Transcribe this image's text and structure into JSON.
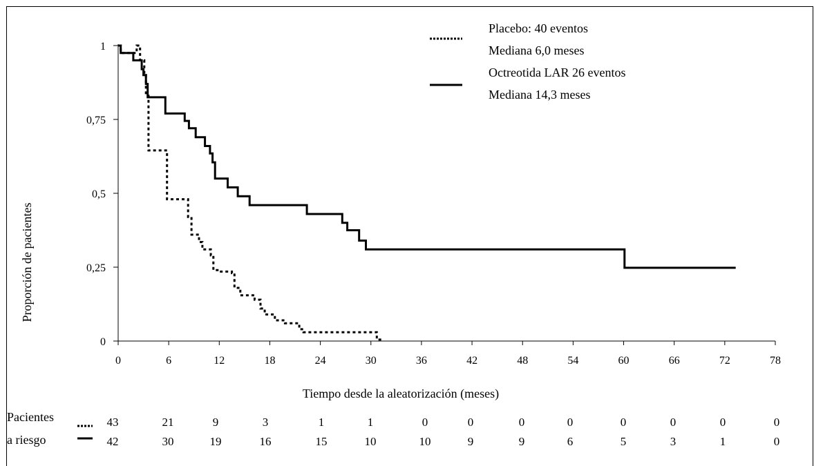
{
  "chart_data": {
    "type": "line",
    "chart_style": "kaplan-meier step curves",
    "title": "",
    "xlabel": "Tiempo desde la aleatorización (meses)",
    "ylabel": "Proporción de pacientes",
    "xlim": [
      0,
      78
    ],
    "ylim": [
      0,
      1
    ],
    "x_ticks": [
      0,
      6,
      12,
      18,
      24,
      30,
      36,
      42,
      48,
      54,
      60,
      66,
      72,
      78
    ],
    "y_ticks": [
      0,
      0.25,
      0.5,
      0.75,
      1
    ],
    "y_tick_labels": [
      "0",
      "0,25",
      "0,5",
      "0,75",
      "1"
    ],
    "grid": false,
    "legend_position": "top-right",
    "series": [
      {
        "name": "Placebo: 40 eventos",
        "name_line2": "Mediana 6,0 meses",
        "style": "dotted",
        "color": "#000000",
        "points": [
          [
            0,
            1
          ],
          [
            0.3,
            0.975
          ],
          [
            2,
            0.975
          ],
          [
            2.2,
            1
          ],
          [
            2.5,
            1
          ],
          [
            2.6,
            0.95
          ],
          [
            3,
            0.95
          ],
          [
            3.1,
            0.9
          ],
          [
            3.3,
            0.83
          ],
          [
            3.6,
            0.645
          ],
          [
            5,
            0.645
          ],
          [
            5.5,
            0.645
          ],
          [
            5.8,
            0.48
          ],
          [
            7.8,
            0.48
          ],
          [
            8.3,
            0.42
          ],
          [
            8.7,
            0.36
          ],
          [
            9.6,
            0.335
          ],
          [
            10,
            0.31
          ],
          [
            11,
            0.29
          ],
          [
            11.3,
            0.24
          ],
          [
            12,
            0.235
          ],
          [
            13.5,
            0.23
          ],
          [
            13.8,
            0.18
          ],
          [
            14.5,
            0.155
          ],
          [
            15.5,
            0.155
          ],
          [
            16.2,
            0.14
          ],
          [
            16.9,
            0.11
          ],
          [
            17.4,
            0.09
          ],
          [
            18.6,
            0.07
          ],
          [
            19.8,
            0.06
          ],
          [
            21.5,
            0.04
          ],
          [
            22,
            0.03
          ],
          [
            30.5,
            0.03
          ],
          [
            30.7,
            0.005
          ],
          [
            31.3,
            0
          ]
        ]
      },
      {
        "name": "Octreotida LAR 26 eventos",
        "name_line2": "Mediana 14,3 meses",
        "style": "solid",
        "color": "#000000",
        "points": [
          [
            0,
            1
          ],
          [
            0.3,
            0.975
          ],
          [
            1.5,
            0.975
          ],
          [
            1.8,
            0.95
          ],
          [
            2.6,
            0.95
          ],
          [
            2.8,
            0.92
          ],
          [
            3,
            0.9
          ],
          [
            3.3,
            0.87
          ],
          [
            3.5,
            0.825
          ],
          [
            5.5,
            0.825
          ],
          [
            5.6,
            0.77
          ],
          [
            7.6,
            0.77
          ],
          [
            7.9,
            0.745
          ],
          [
            8.4,
            0.72
          ],
          [
            9.2,
            0.69
          ],
          [
            10.3,
            0.66
          ],
          [
            10.9,
            0.635
          ],
          [
            11.2,
            0.605
          ],
          [
            11.5,
            0.55
          ],
          [
            13,
            0.52
          ],
          [
            14.2,
            0.49
          ],
          [
            15.6,
            0.46
          ],
          [
            22.2,
            0.46
          ],
          [
            22.4,
            0.43
          ],
          [
            26.3,
            0.43
          ],
          [
            26.6,
            0.4
          ],
          [
            27.2,
            0.375
          ],
          [
            28.6,
            0.34
          ],
          [
            29.4,
            0.31
          ],
          [
            60,
            0.31
          ],
          [
            60.1,
            0.248
          ],
          [
            73.3,
            0.248
          ]
        ]
      }
    ],
    "risk_table": {
      "label_line1": "Pacientes",
      "label_line2": "a riesgo",
      "times": [
        0,
        6,
        12,
        18,
        24,
        30,
        36,
        42,
        48,
        54,
        60,
        66,
        72,
        78
      ],
      "rows": [
        {
          "style": "dotted",
          "values": [
            43,
            21,
            9,
            3,
            1,
            1,
            0,
            0,
            0,
            0,
            0,
            0,
            0,
            0
          ]
        },
        {
          "style": "solid",
          "values": [
            42,
            30,
            19,
            16,
            15,
            10,
            10,
            9,
            9,
            6,
            5,
            3,
            1,
            0
          ]
        }
      ]
    }
  }
}
